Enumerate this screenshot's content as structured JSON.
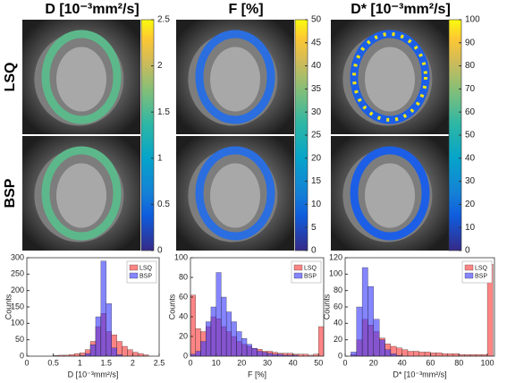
{
  "row_labels": [
    "LSQ",
    "BSP"
  ],
  "chart_data": [
    {
      "type": "image",
      "title": "D [10⁻³mm²/s]",
      "colormap": "parula",
      "ylim": [
        0,
        2.5
      ],
      "yticks": [
        0,
        0.5,
        1,
        1.5,
        2,
        2.5
      ]
    },
    {
      "type": "image",
      "title": "F [%]",
      "colormap": "parula",
      "ylim": [
        0,
        50
      ],
      "yticks": [
        0,
        5,
        10,
        15,
        20,
        25,
        30,
        35,
        40,
        45,
        50
      ]
    },
    {
      "type": "image",
      "title": "D* [10⁻³mm²/s]",
      "colormap": "parula",
      "ylim": [
        0,
        100
      ],
      "yticks": [
        0,
        10,
        20,
        30,
        40,
        50,
        60,
        70,
        80,
        90,
        100
      ]
    },
    {
      "type": "histogram",
      "xlabel": "D [10⁻³mm²/s]",
      "ylabel": "Counts",
      "legend": "upper right",
      "xlim": [
        0,
        2.5
      ],
      "xticks": [
        0,
        0.5,
        1,
        1.5,
        2,
        2.5
      ],
      "ylim": [
        0,
        300
      ],
      "yticks": [
        0,
        50,
        100,
        150,
        200,
        250,
        300
      ],
      "bins": [
        0.5,
        0.6,
        0.7,
        0.8,
        0.9,
        1.0,
        1.1,
        1.2,
        1.3,
        1.4,
        1.5,
        1.6,
        1.7,
        1.8,
        1.9,
        2.0,
        2.1,
        2.2,
        2.3
      ],
      "series": [
        {
          "name": "LSQ",
          "color": "#ff3333",
          "values": [
            2,
            3,
            3,
            5,
            8,
            10,
            20,
            45,
            90,
            130,
            75,
            65,
            45,
            30,
            20,
            12,
            8,
            4
          ]
        },
        {
          "name": "BSP",
          "color": "#3333ff",
          "values": [
            0,
            0,
            0,
            0,
            0,
            2,
            8,
            35,
            120,
            290,
            160,
            25,
            5,
            0,
            0,
            0,
            0,
            0
          ]
        }
      ]
    },
    {
      "type": "histogram",
      "xlabel": "F [%]",
      "ylabel": "Counts",
      "legend": "upper right",
      "xlim": [
        0,
        52
      ],
      "xticks": [
        0,
        10,
        20,
        30,
        40,
        50
      ],
      "ylim": [
        0,
        100
      ],
      "yticks": [
        0,
        20,
        40,
        60,
        80,
        100
      ],
      "bins": [
        0,
        2,
        4,
        6,
        8,
        10,
        12,
        14,
        16,
        18,
        20,
        22,
        24,
        26,
        28,
        30,
        32,
        34,
        36,
        38,
        40,
        42,
        44,
        46,
        48,
        50,
        52
      ],
      "series": [
        {
          "name": "LSQ",
          "color": "#ff3333",
          "values": [
            62,
            28,
            25,
            30,
            40,
            38,
            30,
            25,
            20,
            15,
            12,
            10,
            8,
            7,
            5,
            5,
            4,
            3,
            3,
            3,
            2,
            2,
            2,
            1,
            2,
            30
          ]
        },
        {
          "name": "BSP",
          "color": "#3333ff",
          "values": [
            2,
            5,
            15,
            35,
            50,
            85,
            60,
            45,
            35,
            25,
            18,
            12,
            8,
            5,
            4,
            3,
            2,
            2,
            1,
            1,
            1,
            0,
            0,
            0,
            0,
            0
          ]
        }
      ]
    },
    {
      "type": "histogram",
      "xlabel": "D* [10⁻³mm²/s]",
      "ylabel": "Counts",
      "legend": "upper right",
      "xlim": [
        0,
        105
      ],
      "xticks": [
        0,
        20,
        40,
        60,
        80,
        100
      ],
      "ylim": [
        0,
        120
      ],
      "yticks": [
        0,
        20,
        40,
        60,
        80,
        100,
        120
      ],
      "bins": [
        0,
        4,
        8,
        12,
        16,
        20,
        24,
        28,
        32,
        36,
        40,
        44,
        48,
        52,
        56,
        60,
        64,
        68,
        72,
        76,
        80,
        84,
        88,
        92,
        96,
        100,
        104
      ],
      "series": [
        {
          "name": "LSQ",
          "color": "#ff3333",
          "values": [
            0,
            2,
            20,
            45,
            38,
            30,
            22,
            15,
            12,
            10,
            8,
            6,
            6,
            5,
            5,
            4,
            4,
            3,
            3,
            3,
            2,
            2,
            2,
            2,
            2,
            112
          ]
        },
        {
          "name": "BSP",
          "color": "#3333ff",
          "values": [
            0,
            5,
            60,
            108,
            85,
            45,
            20,
            8,
            3,
            1,
            0,
            0,
            0,
            0,
            0,
            0,
            0,
            0,
            0,
            0,
            0,
            0,
            0,
            0,
            0,
            0
          ]
        }
      ]
    }
  ]
}
